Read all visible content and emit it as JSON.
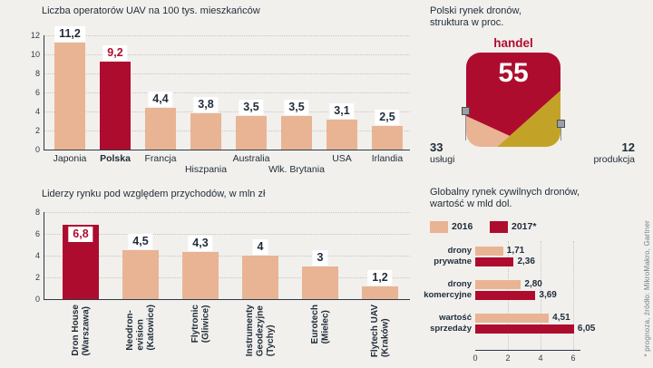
{
  "colors": {
    "background": "#f1f0ed",
    "tan": "#e9b493",
    "red": "#ae0c2e",
    "yellow": "#c2a327",
    "navy": "#1f2c38",
    "axis": "#2e3a46",
    "grid": "#c9c6c0",
    "muted": "#7c8084",
    "value_box_bg": "#ffffff"
  },
  "chart_data": [
    {
      "id": "uav-operators-per-100k",
      "type": "bar",
      "title": "Liczba operatorów UAV na 100 tys. mieszkańców",
      "categories": [
        "Japonia",
        "Polska",
        "Francja",
        "Hiszpania",
        "Australia",
        "Wlk. Brytania",
        "USA",
        "Irlandia"
      ],
      "values": [
        11.2,
        9.2,
        4.4,
        3.8,
        3.5,
        3.5,
        3.1,
        2.5
      ],
      "value_labels": [
        "11,2",
        "9,2",
        "4,4",
        "3,8",
        "3,5",
        "3,5",
        "3,1",
        "2,5"
      ],
      "highlight_index": 1,
      "highlight_category": "Polska",
      "ylim": [
        0,
        12
      ],
      "yticks": [
        0,
        2,
        4,
        6,
        8,
        10,
        12
      ],
      "grid": "dotted-horizontal",
      "staggered_label_indices": [
        3,
        5
      ]
    },
    {
      "id": "polish-market-structure",
      "type": "pie",
      "title_lines": [
        "Polski rynek dronów,",
        "struktura w proc."
      ],
      "slices": [
        {
          "label": "handel",
          "value": 55,
          "display": "55",
          "color": "red"
        },
        {
          "label": "usługi",
          "value": 33,
          "display": "33",
          "color": "tan"
        },
        {
          "label": "produkcja",
          "value": 12,
          "display": "12",
          "color": "yellow"
        }
      ]
    },
    {
      "id": "revenue-leaders-mln-zl",
      "type": "bar",
      "title": "Liderzy rynku pod względem przychodów, w mln zł",
      "categories": [
        [
          "Dron House",
          "(Warszawa)"
        ],
        [
          "Neodron-",
          "evision",
          "(Katowice)"
        ],
        [
          "Flytronic",
          "(Gliwice)"
        ],
        [
          "Instrumenty",
          "Geodezyjne",
          "(Tychy)"
        ],
        [
          "Eurotech",
          "(Mielec)"
        ],
        [
          "Flytech UAV",
          "(Kraków)"
        ]
      ],
      "values": [
        6.8,
        4.5,
        4.3,
        4,
        3,
        1.2
      ],
      "value_labels": [
        "6,8",
        "4,5",
        "4,3",
        "4",
        "3",
        "1,2"
      ],
      "highlight_index": 0,
      "ylim": [
        0,
        8
      ],
      "yticks": [
        0,
        2,
        4,
        6,
        8
      ],
      "label_orientation": "vertical"
    },
    {
      "id": "global-civilian-drone-market",
      "type": "bar-horizontal",
      "title_lines": [
        "Globalny rynek cywilnych dronów,",
        "wartość w mld dol."
      ],
      "legend": [
        {
          "label": "2016",
          "color": "tan"
        },
        {
          "label": "2017*",
          "color": "red"
        }
      ],
      "categories": [
        [
          "drony",
          "prywatne"
        ],
        [
          "drony",
          "komercyjne"
        ],
        [
          "wartość",
          "sprzedaży"
        ]
      ],
      "series": [
        {
          "name": "2016",
          "values": [
            1.71,
            2.8,
            4.51
          ],
          "labels": [
            "1,71",
            "2,80",
            "4,51"
          ]
        },
        {
          "name": "2017*",
          "values": [
            2.36,
            3.69,
            6.05
          ],
          "labels": [
            "2,36",
            "3,69",
            "6,05"
          ]
        }
      ],
      "xlim": [
        0,
        6.5
      ],
      "xticks": [
        0,
        2,
        4,
        6
      ],
      "footnote": "* prognoza, źródło: MikroMakro, Gartner"
    }
  ]
}
